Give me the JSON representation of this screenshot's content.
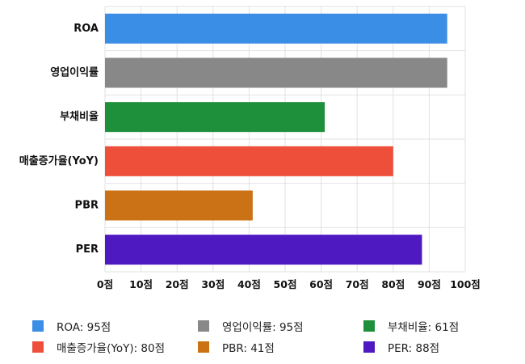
{
  "chart_data": {
    "type": "bar",
    "orientation": "horizontal",
    "categories": [
      "ROA",
      "영업이익률",
      "부채비율",
      "매출증가율(YoY)",
      "PBR",
      "PER"
    ],
    "values": [
      95,
      95,
      61,
      80,
      41,
      88
    ],
    "colors": [
      "#3a8ee6",
      "#888888",
      "#1e8f3a",
      "#ee4f3a",
      "#cb7217",
      "#4e19c0"
    ],
    "xlim": [
      0,
      100
    ],
    "x_ticks": [
      0,
      10,
      20,
      30,
      40,
      50,
      60,
      70,
      80,
      90,
      100
    ],
    "x_tick_labels": [
      "0점",
      "10점",
      "20점",
      "30점",
      "40점",
      "50점",
      "60점",
      "70점",
      "80점",
      "90점",
      "100점"
    ],
    "grid": true,
    "legend_position": "bottom",
    "legend": [
      {
        "label": "ROA: 95점",
        "color": "#3a8ee6"
      },
      {
        "label": "영업이익률: 95점",
        "color": "#888888"
      },
      {
        "label": "부채비율: 61점",
        "color": "#1e8f3a"
      },
      {
        "label": "매출증가율(YoY): 80점",
        "color": "#ee4f3a"
      },
      {
        "label": "PBR: 41점",
        "color": "#cb7217"
      },
      {
        "label": "PER: 88점",
        "color": "#4e19c0"
      }
    ]
  }
}
